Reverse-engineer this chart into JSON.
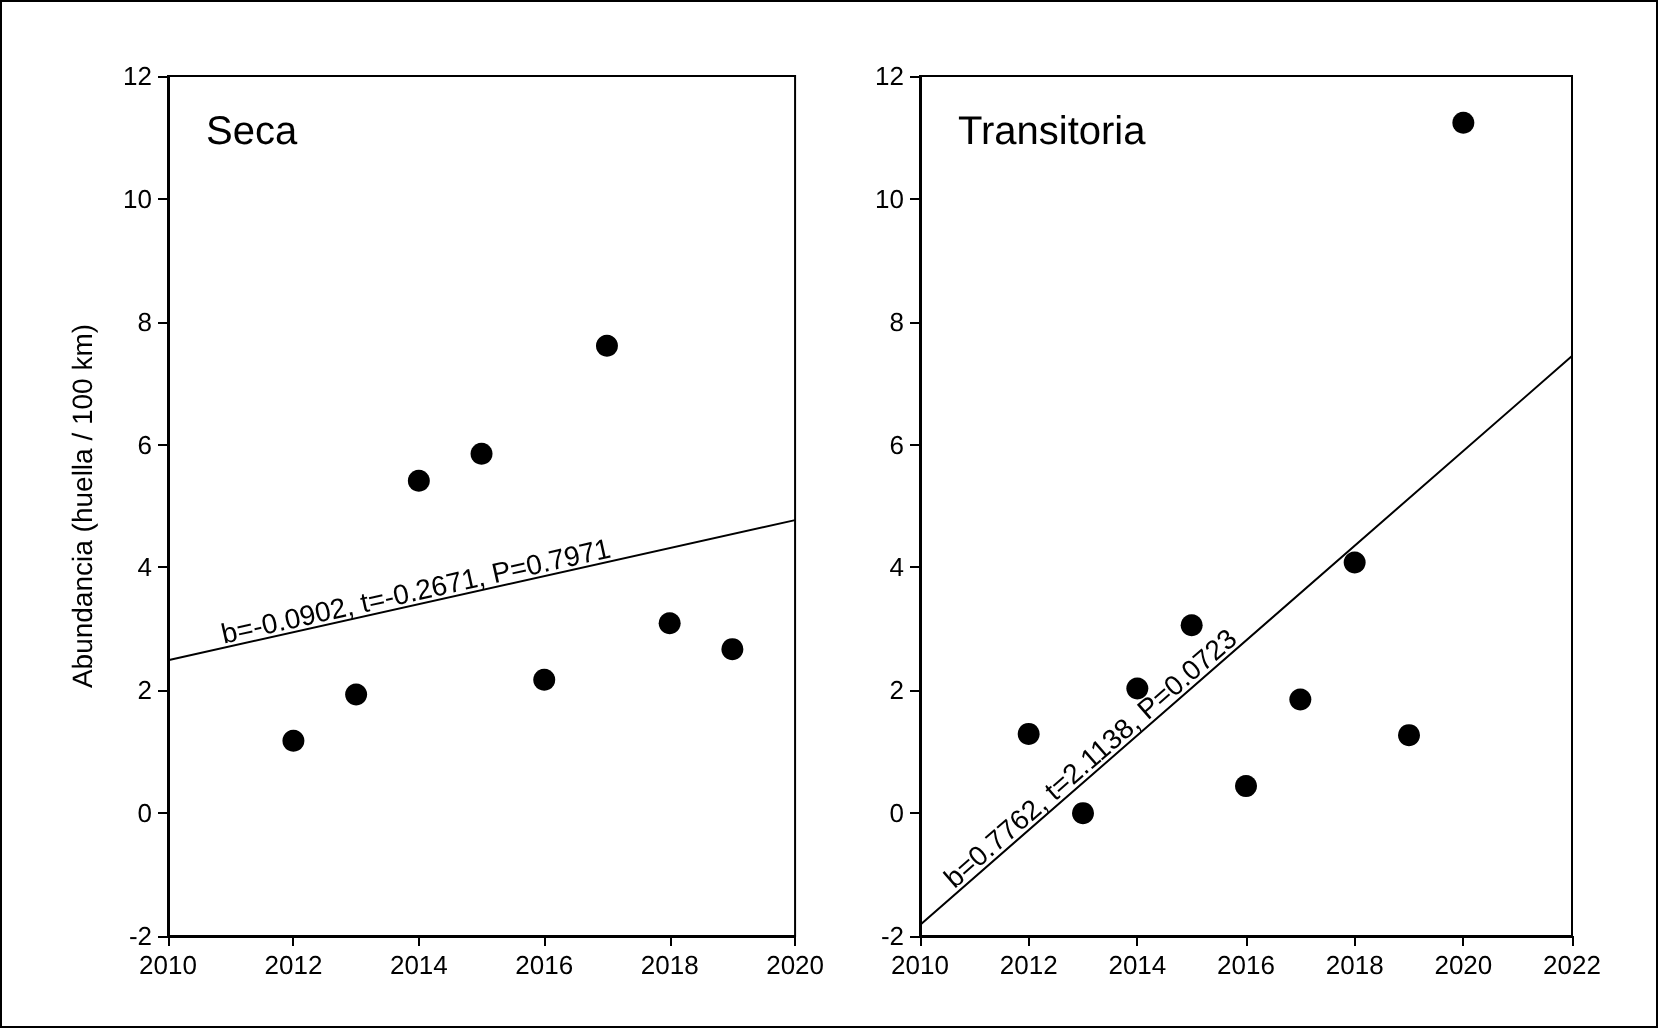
{
  "chart_data": [
    {
      "type": "scatter",
      "title": "Seca",
      "ylabel": "Abundancia (huella / 100 km)",
      "xlim": [
        2010,
        2020
      ],
      "xticks": [
        2010,
        2012,
        2014,
        2016,
        2018,
        2020
      ],
      "ylim": [
        -2,
        12
      ],
      "yticks": [
        -2,
        0,
        2,
        4,
        6,
        8,
        10,
        12
      ],
      "grid": false,
      "marker": "circle",
      "series": [
        {
          "color": "#000000",
          "x": [
            2012,
            2013,
            2014,
            2015,
            2016,
            2017,
            2018,
            2019
          ],
          "values": [
            1.18,
            1.93,
            5.41,
            5.85,
            2.17,
            7.61,
            3.09,
            2.67
          ]
        },
        {
          "type": "line",
          "color": "#000000",
          "marker": "none",
          "line_style": "solid",
          "x": [
            2010,
            2020
          ],
          "values": [
            2.49,
            4.77
          ]
        }
      ],
      "annotations": [
        {
          "text": "b=-0.0902, t=-0.2671, P=0.7971",
          "x": 2014,
          "y": 3.4
        }
      ]
    },
    {
      "type": "scatter",
      "title": "Transitoria",
      "xlim": [
        2010,
        2022
      ],
      "xticks": [
        2010,
        2012,
        2014,
        2016,
        2018,
        2020,
        2022
      ],
      "ylim": [
        -2,
        12
      ],
      "yticks": [
        -2,
        0,
        2,
        4,
        6,
        8,
        10,
        12
      ],
      "grid": false,
      "marker": "circle",
      "series": [
        {
          "color": "#000000",
          "x": [
            2012,
            2013,
            2014,
            2015,
            2016,
            2017,
            2018,
            2019,
            2020
          ],
          "values": [
            1.29,
            0,
            2.03,
            3.06,
            0.44,
            1.85,
            4.08,
            1.27,
            11.24
          ]
        },
        {
          "type": "line",
          "color": "#000000",
          "marker": "none",
          "line_style": "solid",
          "x": [
            2010,
            2022
          ],
          "values": [
            -1.82,
            7.44
          ]
        }
      ],
      "annotations": [
        {
          "text": "b=0.7762, t=2.1138, P=0.0723",
          "x": 2013.3,
          "y": 0.73
        }
      ]
    }
  ]
}
